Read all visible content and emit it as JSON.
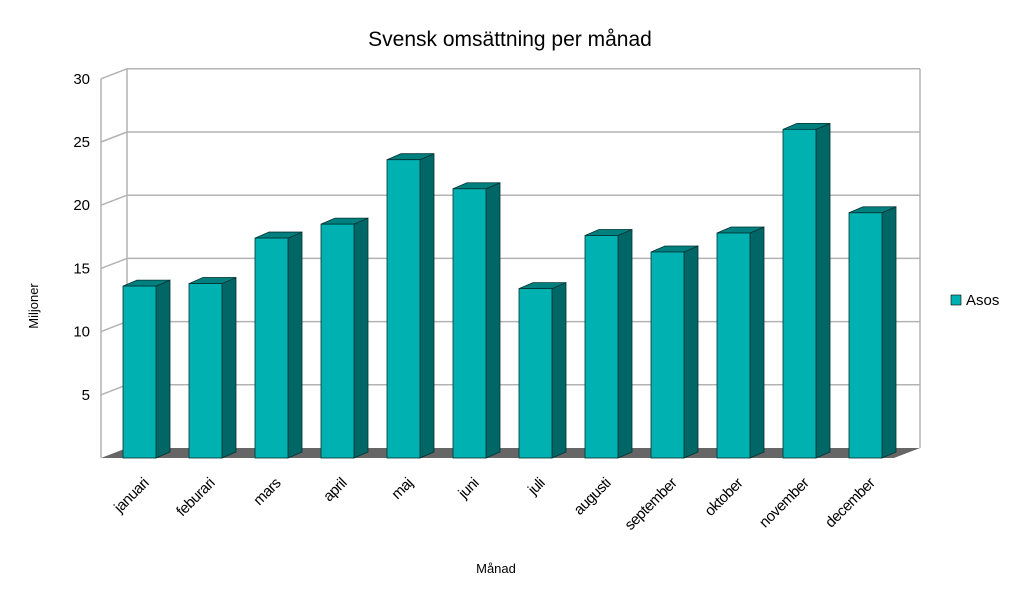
{
  "chart_data": {
    "type": "bar",
    "title": "Svensk omsättning per månad",
    "xlabel": "Månad",
    "ylabel": "Miljoner",
    "ylim": [
      0,
      30
    ],
    "yticks": [
      "5",
      "10",
      "15",
      "20",
      "25",
      "30"
    ],
    "categories": [
      "januari",
      "feburari",
      "mars",
      "april",
      "maj",
      "juni",
      "juli",
      "augusti",
      "september",
      "oktober",
      "november",
      "december"
    ],
    "series": [
      {
        "name": "Asos",
        "values": [
          13.6,
          13.8,
          17.4,
          18.5,
          23.6,
          21.3,
          13.4,
          17.6,
          16.3,
          17.8,
          26.0,
          19.4
        ]
      }
    ],
    "grid": true,
    "legend_position": "right",
    "style": "3d-bar",
    "colors": {
      "bar_front": "#00b1b1",
      "bar_top": "#007f7f",
      "bar_side": "#006666",
      "floor": "#666666",
      "grid": "#b3b3b3"
    }
  }
}
